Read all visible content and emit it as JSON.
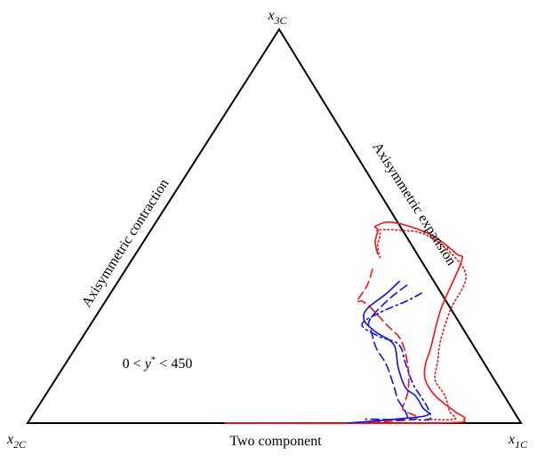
{
  "chart_data": {
    "type": "line",
    "subtype": "ternary (barycentric) map",
    "corners": {
      "top": {
        "base": "x",
        "sub": "3C"
      },
      "left": {
        "base": "x",
        "sub": "2C"
      },
      "right": {
        "base": "x",
        "sub": "1C"
      }
    },
    "edges": {
      "left": "Axisymmetric contraction",
      "right": "Axisymmetric expansion",
      "bottom": "Two component"
    },
    "annotation": {
      "prefix": "0 < ",
      "var": "y",
      "star": "*",
      "suffix": " < 450"
    },
    "coordinate_note": "points are barycentric weights [x1C, x2C, x3C], each summing to 1",
    "colors": {
      "red": "#ee1c1c",
      "blue": "#1a1adc",
      "frame": "#000000"
    },
    "series": [
      {
        "color": "red",
        "dash": "solid",
        "points": [
          [
            0.49,
            0.08,
            0.43
          ],
          [
            0.47,
            0.07,
            0.46
          ],
          [
            0.46,
            0.05,
            0.49
          ],
          [
            0.45,
            0.05,
            0.5
          ],
          [
            0.48,
            0.01,
            0.51
          ],
          [
            0.57,
            -0.05,
            0.48
          ],
          [
            0.65,
            -0.08,
            0.43
          ],
          [
            0.67,
            -0.08,
            0.41
          ],
          [
            0.69,
            0.02,
            0.29
          ],
          [
            0.72,
            0.09,
            0.19
          ],
          [
            0.73,
            0.12,
            0.15
          ],
          [
            0.75,
            0.14,
            0.11
          ],
          [
            0.79,
            0.14,
            0.07
          ],
          [
            0.85,
            0.12,
            0.03
          ],
          [
            0.88,
            0.11,
            0.01
          ],
          [
            0.83,
            0.17,
            0.0
          ],
          [
            0.4,
            0.6,
            0.0
          ]
        ]
      },
      {
        "color": "red",
        "dash": "dotted",
        "points": [
          [
            0.5,
            0.08,
            0.42
          ],
          [
            0.48,
            0.07,
            0.45
          ],
          [
            0.47,
            0.05,
            0.48
          ],
          [
            0.46,
            0.05,
            0.49
          ],
          [
            0.5,
            0.01,
            0.49
          ],
          [
            0.56,
            -0.04,
            0.48
          ],
          [
            0.64,
            -0.07,
            0.43
          ],
          [
            0.7,
            -0.07,
            0.37
          ],
          [
            0.71,
            0.0,
            0.29
          ],
          [
            0.73,
            0.06,
            0.21
          ],
          [
            0.75,
            0.09,
            0.16
          ],
          [
            0.77,
            0.12,
            0.11
          ],
          [
            0.81,
            0.12,
            0.07
          ],
          [
            0.84,
            0.13,
            0.03
          ],
          [
            0.86,
            0.13,
            0.01
          ],
          [
            0.8,
            0.19,
            0.01
          ]
        ]
      },
      {
        "color": "red",
        "dash": "dashed",
        "points": [
          [
            0.5,
            0.11,
            0.39
          ],
          [
            0.51,
            0.14,
            0.35
          ],
          [
            0.51,
            0.18,
            0.31
          ],
          [
            0.52,
            0.17,
            0.31
          ],
          [
            0.55,
            0.16,
            0.29
          ],
          [
            0.6,
            0.15,
            0.25
          ],
          [
            0.65,
            0.14,
            0.21
          ],
          [
            0.7,
            0.16,
            0.14
          ],
          [
            0.73,
            0.19,
            0.08
          ],
          [
            0.74,
            0.22,
            0.04
          ],
          [
            0.75,
            0.22,
            0.03
          ],
          [
            0.78,
            0.21,
            0.01
          ],
          [
            0.65,
            0.35,
            0.0
          ]
        ]
      },
      {
        "color": "blue",
        "dash": "solid",
        "points": [
          [
            0.57,
            0.07,
            0.36
          ],
          [
            0.56,
            0.11,
            0.33
          ],
          [
            0.54,
            0.17,
            0.29
          ],
          [
            0.55,
            0.19,
            0.26
          ],
          [
            0.59,
            0.18,
            0.23
          ],
          [
            0.64,
            0.16,
            0.2
          ],
          [
            0.68,
            0.18,
            0.14
          ],
          [
            0.72,
            0.19,
            0.09
          ],
          [
            0.75,
            0.18,
            0.07
          ],
          [
            0.78,
            0.18,
            0.04
          ],
          [
            0.8,
            0.18,
            0.02
          ],
          [
            0.74,
            0.25,
            0.01
          ],
          [
            0.65,
            0.35,
            0.0
          ]
        ]
      },
      {
        "color": "blue",
        "dash": "dashed",
        "points": [
          [
            0.59,
            0.06,
            0.35
          ],
          [
            0.57,
            0.12,
            0.31
          ],
          [
            0.56,
            0.18,
            0.26
          ],
          [
            0.58,
            0.19,
            0.23
          ],
          [
            0.61,
            0.2,
            0.19
          ],
          [
            0.65,
            0.2,
            0.15
          ],
          [
            0.69,
            0.21,
            0.1
          ],
          [
            0.72,
            0.22,
            0.06
          ],
          [
            0.75,
            0.22,
            0.03
          ],
          [
            0.76,
            0.23,
            0.01
          ],
          [
            0.7,
            0.29,
            0.01
          ],
          [
            0.68,
            0.31,
            0.01
          ]
        ]
      },
      {
        "color": "blue",
        "dash": "dashdot",
        "points": [
          [
            0.63,
            0.04,
            0.33
          ],
          [
            0.61,
            0.08,
            0.31
          ],
          [
            0.57,
            0.15,
            0.28
          ],
          [
            0.55,
            0.2,
            0.25
          ],
          [
            0.6,
            0.18,
            0.22
          ],
          [
            0.65,
            0.15,
            0.2
          ],
          [
            0.69,
            0.16,
            0.15
          ],
          [
            0.73,
            0.17,
            0.1
          ],
          [
            0.76,
            0.17,
            0.07
          ],
          [
            0.79,
            0.17,
            0.04
          ],
          [
            0.81,
            0.18,
            0.01
          ],
          [
            0.77,
            0.22,
            0.01
          ]
        ]
      }
    ]
  }
}
